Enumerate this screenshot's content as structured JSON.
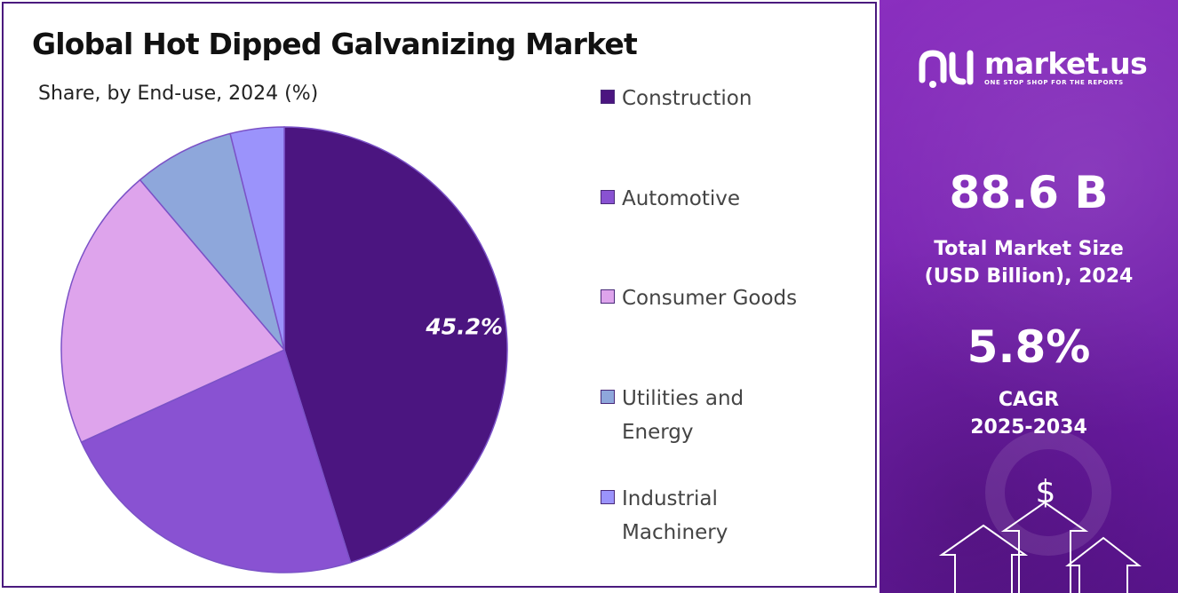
{
  "title": "Global Hot Dipped Galvanizing Market",
  "subtitle": "Share, by End-use, 2024 (%)",
  "chart_data": {
    "type": "pie",
    "title": "Global Hot Dipped Galvanizing Market",
    "subtitle": "Share, by End-use, 2024 (%)",
    "categories": [
      "Construction",
      "Automotive",
      "Consumer Goods",
      "Utilities and Energy",
      "Industrial Machinery"
    ],
    "values": [
      45.2,
      23.0,
      20.6,
      7.3,
      3.9
    ],
    "colors": [
      "#4b1580",
      "#8952d2",
      "#dea4ec",
      "#8ea7db",
      "#9b93fb"
    ],
    "data_labels": [
      {
        "category": "Construction",
        "text": "45.2%"
      }
    ],
    "legend_position": "right",
    "start_angle_deg": 0,
    "direction": "clockwise"
  },
  "legend": [
    {
      "label": "Construction",
      "color": "#4b1580"
    },
    {
      "label": "Automotive",
      "color": "#8952d2"
    },
    {
      "label": "Consumer Goods",
      "color": "#dea4ec"
    },
    {
      "label": "Utilities and Energy",
      "color": "#8ea7db"
    },
    {
      "label": "Industrial Machinery",
      "color": "#9b93fb"
    }
  ],
  "side_panel": {
    "brand": "market.us",
    "tagline": "ONE STOP SHOP FOR THE REPORTS",
    "market_size_value": "88.6 B",
    "market_size_label_line1": "Total Market Size",
    "market_size_label_line2": "(USD Billion), 2024",
    "cagr_value": "5.8%",
    "cagr_label_line1": "CAGR",
    "cagr_label_line2": "2025-2034",
    "dollar_symbol": "$",
    "background_color": "#7a23b3"
  }
}
